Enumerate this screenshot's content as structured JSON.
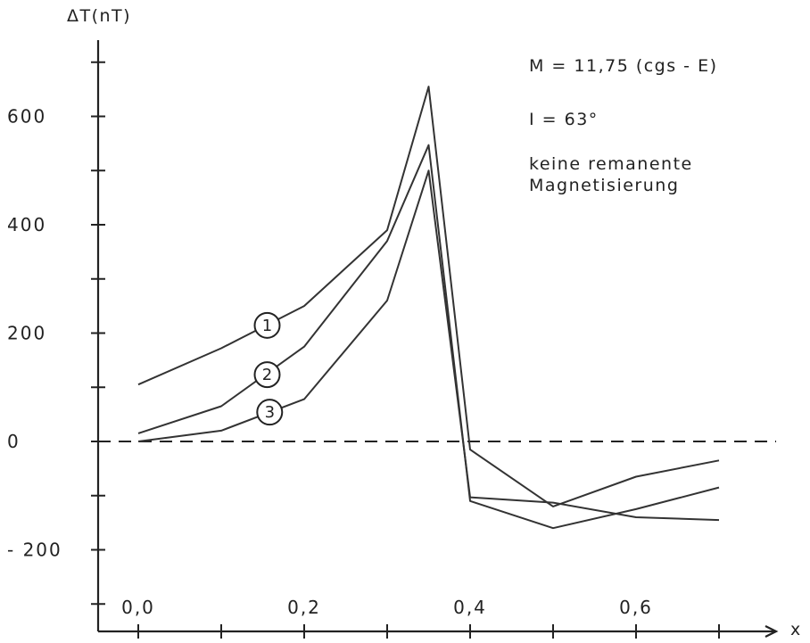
{
  "chart_data": {
    "type": "line",
    "ylabel": "ΔT(nT)",
    "xlabel": "x",
    "xlim": [
      0.0,
      0.7
    ],
    "ylim": [
      -300,
      700
    ],
    "x_ticks": [
      0.0,
      0.2,
      0.4,
      0.6
    ],
    "x_tick_labels": [
      "0,0",
      "0,2",
      "0,4",
      "0,6"
    ],
    "y_ticks": [
      600,
      400,
      200,
      0,
      -200
    ],
    "y_tick_labels": [
      "600",
      "400",
      "200",
      "0",
      "- 200"
    ],
    "zero_line": "dashed",
    "grid": false,
    "annotations": [
      "M = 11,75 (cgs - E)",
      "I = 63°",
      "keine remanente",
      "Magnetisierung"
    ],
    "series": [
      {
        "label": "1",
        "x": [
          0.0,
          0.1,
          0.2,
          0.3,
          0.35,
          0.4,
          0.5,
          0.6,
          0.7
        ],
        "y": [
          105,
          172,
          250,
          390,
          655,
          -15,
          -120,
          -65,
          -35
        ]
      },
      {
        "label": "2",
        "x": [
          0.0,
          0.1,
          0.2,
          0.3,
          0.35,
          0.4,
          0.5,
          0.6,
          0.7
        ],
        "y": [
          15,
          65,
          175,
          370,
          547,
          -110,
          -160,
          -125,
          -85
        ]
      },
      {
        "label": "3",
        "x": [
          0.0,
          0.1,
          0.2,
          0.3,
          0.35,
          0.4,
          0.5,
          0.6,
          0.7
        ],
        "y": [
          0,
          20,
          78,
          260,
          500,
          -103,
          -113,
          -140,
          -145
        ]
      }
    ]
  }
}
